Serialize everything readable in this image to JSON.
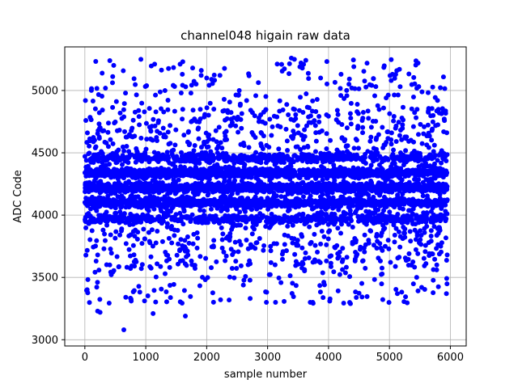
{
  "chart_data": {
    "type": "scatter",
    "title": "channel048 higain raw data",
    "xlabel": "sample number",
    "ylabel": "ADC Code",
    "xlim": [
      -330,
      6260
    ],
    "ylim": [
      2950,
      5350
    ],
    "xticks": [
      0,
      1000,
      2000,
      3000,
      4000,
      5000,
      6000
    ],
    "yticks": [
      3000,
      3500,
      4000,
      4500,
      5000
    ],
    "grid": true,
    "marker_color": "#0000ff",
    "series": [
      {
        "x_range": [
          0,
          5950
        ],
        "n_points": 6000,
        "dense_levels": [
          {
            "value": 4340,
            "share": 0.19
          },
          {
            "value": 4220,
            "share": 0.22
          },
          {
            "value": 4100,
            "share": 0.15
          },
          {
            "value": 4460,
            "share": 0.08
          },
          {
            "value": 3970,
            "share": 0.08
          }
        ],
        "sparse_band": [
          3290,
          5250
        ],
        "outliers": [
          {
            "x": 640,
            "y": 3080
          },
          {
            "x": 1650,
            "y": 3190
          },
          {
            "x": 210,
            "y": 3230
          },
          {
            "x": 250,
            "y": 3220
          },
          {
            "x": 1120,
            "y": 3210
          },
          {
            "x": 2980,
            "y": 3300
          },
          {
            "x": 3130,
            "y": 3300
          },
          {
            "x": 3700,
            "y": 3300
          },
          {
            "x": 3740,
            "y": 3300
          },
          {
            "x": 4360,
            "y": 3290
          },
          {
            "x": 3390,
            "y": 5260
          },
          {
            "x": 3440,
            "y": 5250
          },
          {
            "x": 920,
            "y": 5250
          },
          {
            "x": 410,
            "y": 5240
          },
          {
            "x": 3230,
            "y": 5210
          },
          {
            "x": 5470,
            "y": 5220
          },
          {
            "x": 3530,
            "y": 5190
          },
          {
            "x": 3590,
            "y": 5210
          },
          {
            "x": 1600,
            "y": 5130
          },
          {
            "x": 5050,
            "y": 5130
          },
          {
            "x": 5010,
            "y": 5120
          },
          {
            "x": 3570,
            "y": 5180
          },
          {
            "x": 3870,
            "y": 5100
          },
          {
            "x": 2000,
            "y": 5100
          },
          {
            "x": 2080,
            "y": 5090
          }
        ]
      }
    ]
  }
}
